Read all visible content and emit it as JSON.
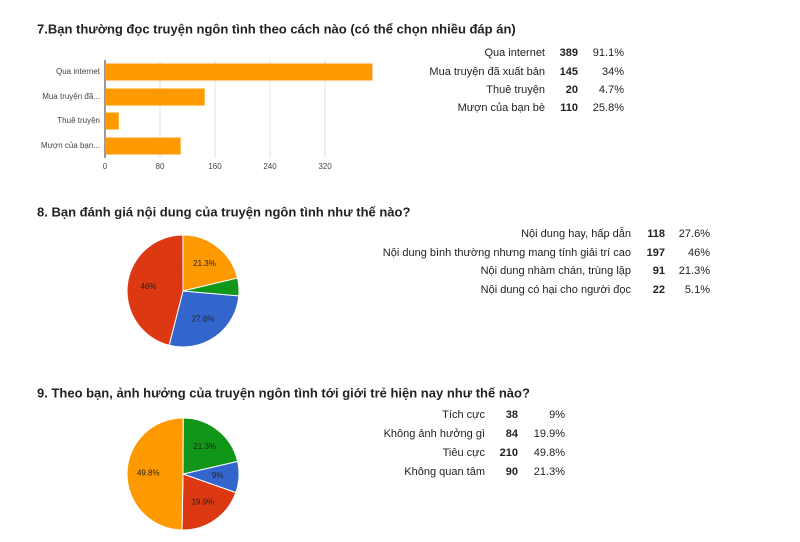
{
  "chart_data": [
    {
      "type": "bar",
      "title": "7.Bạn thường đọc truyện ngôn tình theo cách nào (có thể chọn nhiều đáp án)",
      "categories": [
        "Qua internet",
        "Mua truyện đã xuất bản",
        "Thuê truyện",
        "Mượn của bạn bè"
      ],
      "category_axis_labels": [
        "Qua internet",
        "Mua truyện đã...",
        "Thuê truyện",
        "Mượn của bạn..."
      ],
      "values": [
        389,
        145,
        20,
        110
      ],
      "percent_labels": [
        "91.1%",
        "34%",
        "4.7%",
        "25.8%"
      ],
      "color": "#ff9900",
      "xlim": [
        0,
        400
      ],
      "xticks": [
        0,
        80,
        160,
        240,
        320
      ]
    },
    {
      "type": "pie",
      "title": "8. Bạn đánh giá nội dung của truyện ngôn tình như thế nào?",
      "categories": [
        "Nội dung hay, hấp dẫn",
        "Nội dung bình thường nhưng mang tính giải trí cao",
        "Nội dung nhàm chán, trùng lặp",
        "Nội dung có hại cho người đọc"
      ],
      "counts": [
        118,
        197,
        91,
        22
      ],
      "values": [
        27.6,
        46,
        21.3,
        5.1
      ],
      "value_labels": [
        "27.6%",
        "46%",
        "21.3%",
        "5.1%"
      ],
      "colors": [
        "#3366cc",
        "#dc3912",
        "#ff9900",
        "#109618"
      ]
    },
    {
      "type": "pie",
      "title": "9. Theo bạn, ảnh hưởng của truyện ngôn tình tới giới trẻ hiện nay như thế nào?",
      "categories": [
        "Tích cực",
        "Không ảnh hưởng gì",
        "Tiêu cực",
        "Không quan tâm"
      ],
      "counts": [
        38,
        84,
        210,
        90
      ],
      "values": [
        9,
        19.9,
        49.8,
        21.3
      ],
      "value_labels": [
        "9%",
        "19.9%",
        "49.8%",
        "21.3%"
      ],
      "colors": [
        "#3366cc",
        "#dc3912",
        "#ff9900",
        "#109618"
      ]
    }
  ]
}
